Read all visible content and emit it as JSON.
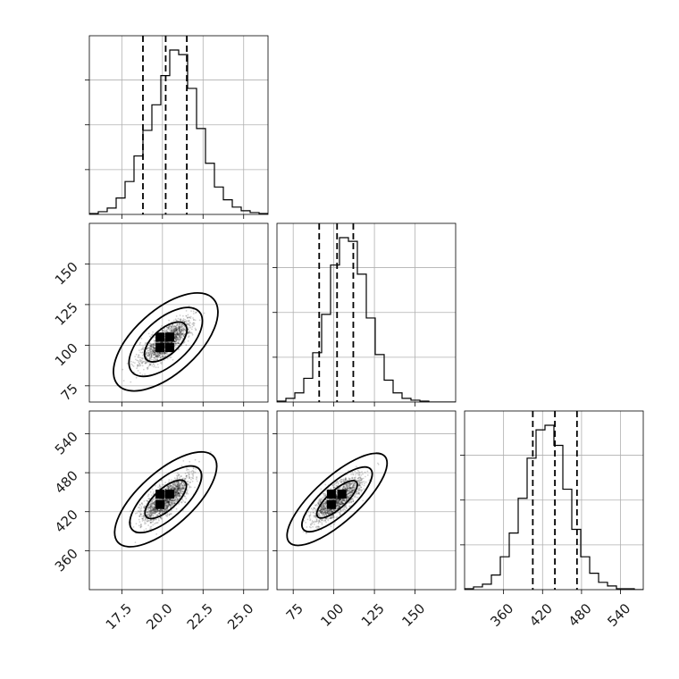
{
  "chart_data": {
    "type": "corner",
    "grid": true,
    "parameters": [
      {
        "range": [
          15.5,
          26.5
        ],
        "ticks": [
          17.5,
          20.0,
          22.5,
          25.0
        ],
        "tick_labels": [
          "17.5",
          "20.0",
          "22.5",
          "25.0"
        ],
        "quantiles": [
          18.8,
          20.2,
          21.5
        ],
        "hist_edges_start": 15.5,
        "hist_bin_width": 0.55,
        "hist_counts": [
          1,
          3,
          7,
          18,
          36,
          64,
          92,
          120,
          152,
          180,
          175,
          138,
          94,
          56,
          30,
          16,
          8,
          4,
          2,
          1
        ]
      },
      {
        "range": [
          65,
          175
        ],
        "ticks": [
          75,
          100,
          125,
          150
        ],
        "tick_labels": [
          "75",
          "100",
          "125",
          "150"
        ],
        "quantiles": [
          91,
          102,
          112
        ],
        "hist_edges_start": 65,
        "hist_bin_width": 5.5,
        "hist_counts": [
          1,
          4,
          10,
          26,
          54,
          96,
          150,
          180,
          176,
          140,
          92,
          52,
          24,
          10,
          4,
          2,
          1,
          0,
          0,
          0
        ]
      },
      {
        "range": [
          300,
          575
        ],
        "ticks": [
          360,
          420,
          480,
          540
        ],
        "tick_labels": [
          "360",
          "420",
          "480",
          "540"
        ],
        "quantiles": [
          405,
          439,
          473
        ],
        "hist_edges_start": 300,
        "hist_bin_width": 13.75,
        "hist_counts": [
          1,
          3,
          6,
          16,
          36,
          62,
          100,
          144,
          175,
          180,
          158,
          110,
          66,
          36,
          18,
          8,
          4,
          1,
          1,
          0
        ]
      }
    ],
    "pairs": [
      {
        "row": 1,
        "col": 0,
        "center": [
          20.2,
          102
        ],
        "contours": [
          {
            "semi_major": 3.7,
            "semi_minor": 1.35,
            "level": 2.0,
            "fill": "#f3f3f3"
          },
          {
            "semi_major": 2.6,
            "semi_minor": 0.95,
            "level": 1.4,
            "fill": "#c7c7c7"
          },
          {
            "semi_major": 1.5,
            "semi_minor": 0.55,
            "level": 0.8,
            "fill": "#8a8a8a"
          }
        ],
        "density_peak_cells": [
          [
            19.85,
            98.5
          ],
          [
            20.45,
            105
          ],
          [
            19.85,
            105
          ],
          [
            20.45,
            98.5
          ]
        ]
      },
      {
        "row": 2,
        "col": 0,
        "center": [
          20.2,
          439
        ],
        "contours": [
          {
            "semi_major": 3.7,
            "semi_minor": 1.15,
            "level": 2.0,
            "fill": "#f3f3f3"
          },
          {
            "semi_major": 2.6,
            "semi_minor": 0.8,
            "level": 1.4,
            "fill": "#c7c7c7"
          },
          {
            "semi_major": 1.5,
            "semi_minor": 0.46,
            "level": 0.8,
            "fill": "#8a8a8a"
          }
        ],
        "density_peak_cells": [
          [
            19.85,
            431
          ],
          [
            20.45,
            447
          ],
          [
            19.85,
            447
          ]
        ]
      },
      {
        "row": 2,
        "col": 1,
        "center": [
          102,
          439
        ],
        "contours": [
          {
            "semi_major": 3.7,
            "semi_minor": 0.95,
            "level": 2.0,
            "fill": "#f3f3f3"
          },
          {
            "semi_major": 2.6,
            "semi_minor": 0.66,
            "level": 1.4,
            "fill": "#c7c7c7"
          },
          {
            "semi_major": 1.5,
            "semi_minor": 0.38,
            "level": 0.8,
            "fill": "#8a8a8a"
          }
        ],
        "density_peak_cells": [
          [
            98.5,
            431
          ],
          [
            105,
            447
          ],
          [
            98.5,
            447
          ]
        ]
      }
    ]
  }
}
